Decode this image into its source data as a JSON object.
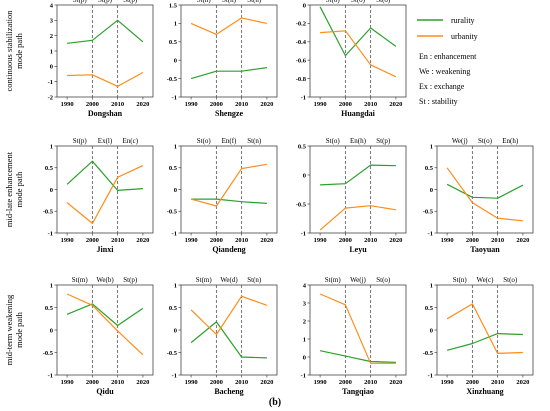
{
  "caption": "(b)",
  "legend": {
    "rurality": "rurality",
    "urbanity": "urbanity",
    "notes": [
      "En  : enhancement",
      "We  : weakening",
      "Ex  : exchange",
      "St   : stability"
    ]
  },
  "colors": {
    "rurality": "#2ca02c",
    "urbanity": "#ff8c1a"
  },
  "row_titles": [
    [
      "continuous stabilization",
      "mode path"
    ],
    [
      "mid-late enhancement",
      "mode path"
    ],
    [
      "mid-term weakening",
      "mode path"
    ]
  ],
  "chart_data": [
    {
      "type": "line",
      "name": "Dongshan",
      "row": 0,
      "col": 0,
      "x": [
        1990,
        2000,
        2010,
        2020
      ],
      "ylim": [
        -2,
        4
      ],
      "yticks": [
        -2,
        -1,
        0,
        1,
        2,
        3,
        4
      ],
      "phases": [
        "St(p)",
        "St(p)",
        "St(p)"
      ],
      "series": [
        {
          "name": "rurality",
          "values": [
            1.5,
            1.7,
            3.0,
            1.6
          ]
        },
        {
          "name": "urbanity",
          "values": [
            -0.6,
            -0.55,
            -1.3,
            -0.4
          ]
        }
      ]
    },
    {
      "type": "line",
      "name": "Shengze",
      "row": 0,
      "col": 1,
      "x": [
        1990,
        2000,
        2010,
        2020
      ],
      "ylim": [
        -1,
        1.5
      ],
      "yticks": [
        -1,
        -0.5,
        0,
        0.5,
        1,
        1.5
      ],
      "phases": [
        "St(n)",
        "St(n)",
        "St(n)"
      ],
      "series": [
        {
          "name": "rurality",
          "values": [
            -0.5,
            -0.3,
            -0.3,
            -0.2
          ]
        },
        {
          "name": "urbanity",
          "values": [
            1.0,
            0.7,
            1.15,
            1.0
          ]
        }
      ]
    },
    {
      "type": "line",
      "name": "Huangdai",
      "row": 0,
      "col": 2,
      "x": [
        1990,
        2000,
        2010,
        2020
      ],
      "ylim": [
        -1,
        0
      ],
      "yticks": [
        -1,
        -0.8,
        -0.6,
        -0.4,
        -0.2,
        0
      ],
      "phases": [
        "St(o)",
        "St(o)",
        "St(o)"
      ],
      "series": [
        {
          "name": "rurality",
          "values": [
            -0.02,
            -0.55,
            -0.25,
            -0.45
          ]
        },
        {
          "name": "urbanity",
          "values": [
            -0.3,
            -0.28,
            -0.65,
            -0.78
          ]
        }
      ]
    },
    {
      "type": "line",
      "name": "Jinxi",
      "row": 1,
      "col": 0,
      "x": [
        1990,
        2000,
        2010,
        2020
      ],
      "ylim": [
        -1,
        1
      ],
      "yticks": [
        -1,
        -0.5,
        0,
        0.5,
        1
      ],
      "phases": [
        "St(p)",
        "Ex(l)",
        "En(c)"
      ],
      "series": [
        {
          "name": "rurality",
          "values": [
            0.12,
            0.65,
            -0.02,
            0.02
          ]
        },
        {
          "name": "urbanity",
          "values": [
            -0.3,
            -0.78,
            0.28,
            0.55
          ]
        }
      ]
    },
    {
      "type": "line",
      "name": "Qiandeng",
      "row": 1,
      "col": 1,
      "x": [
        1990,
        2000,
        2010,
        2020
      ],
      "ylim": [
        -1,
        1
      ],
      "yticks": [
        -1,
        -0.5,
        0,
        0.5,
        1
      ],
      "phases": [
        "St(o)",
        "En(f)",
        "St(n)"
      ],
      "series": [
        {
          "name": "rurality",
          "values": [
            -0.22,
            -0.22,
            -0.28,
            -0.32
          ]
        },
        {
          "name": "urbanity",
          "values": [
            -0.22,
            -0.38,
            0.48,
            0.58
          ]
        }
      ]
    },
    {
      "type": "line",
      "name": "Leyu",
      "row": 1,
      "col": 2,
      "x": [
        1990,
        2000,
        2010,
        2020
      ],
      "ylim": [
        -1,
        0.5
      ],
      "yticks": [
        -1,
        -0.5,
        0,
        0.5
      ],
      "phases": [
        "St(o)",
        "En(h)",
        "St(p)"
      ],
      "series": [
        {
          "name": "rurality",
          "values": [
            -0.17,
            -0.15,
            0.17,
            0.16
          ]
        },
        {
          "name": "urbanity",
          "values": [
            -0.95,
            -0.57,
            -0.53,
            -0.6
          ]
        }
      ]
    },
    {
      "type": "line",
      "name": "Taoyuan",
      "row": 1,
      "col": 3,
      "x": [
        1990,
        2000,
        2010,
        2020
      ],
      "ylim": [
        -1,
        1
      ],
      "yticks": [
        -1,
        -0.5,
        0,
        0.5,
        1
      ],
      "phases": [
        "We(j)",
        "St(o)",
        "En(h)"
      ],
      "series": [
        {
          "name": "rurality",
          "values": [
            0.12,
            -0.18,
            -0.2,
            0.1
          ]
        },
        {
          "name": "urbanity",
          "values": [
            0.5,
            -0.3,
            -0.66,
            -0.72
          ]
        }
      ]
    },
    {
      "type": "line",
      "name": "Qidu",
      "row": 2,
      "col": 0,
      "x": [
        1990,
        2000,
        2010,
        2020
      ],
      "ylim": [
        -1,
        1
      ],
      "yticks": [
        -1,
        -0.5,
        0,
        0.5,
        1
      ],
      "phases": [
        "St(m)",
        "We(b)",
        "St(p)"
      ],
      "series": [
        {
          "name": "rurality",
          "values": [
            0.35,
            0.58,
            0.1,
            0.48
          ]
        },
        {
          "name": "urbanity",
          "values": [
            0.8,
            0.55,
            -0.02,
            -0.55
          ]
        }
      ]
    },
    {
      "type": "line",
      "name": "Bacheng",
      "row": 2,
      "col": 1,
      "x": [
        1990,
        2000,
        2010,
        2020
      ],
      "ylim": [
        -1,
        1
      ],
      "yticks": [
        -1,
        -0.5,
        0,
        0.5,
        1
      ],
      "phases": [
        "St(m)",
        "We(d)",
        "St(n)"
      ],
      "series": [
        {
          "name": "rurality",
          "values": [
            -0.28,
            0.18,
            -0.6,
            -0.62
          ]
        },
        {
          "name": "urbanity",
          "values": [
            0.45,
            -0.1,
            0.75,
            0.55
          ]
        }
      ]
    },
    {
      "type": "line",
      "name": "Tangqiao",
      "row": 2,
      "col": 2,
      "x": [
        1990,
        2000,
        2010,
        2020
      ],
      "ylim": [
        -1,
        4
      ],
      "yticks": [
        -1,
        0,
        1,
        2,
        3,
        4
      ],
      "phases": [
        "St(m)",
        "We(j)",
        "St(o)"
      ],
      "series": [
        {
          "name": "rurality",
          "values": [
            0.35,
            0.05,
            -0.25,
            -0.3
          ]
        },
        {
          "name": "urbanity",
          "values": [
            3.5,
            2.9,
            -0.35,
            -0.35
          ]
        }
      ]
    },
    {
      "type": "line",
      "name": "Xinzhuang",
      "row": 2,
      "col": 3,
      "x": [
        1990,
        2000,
        2010,
        2020
      ],
      "ylim": [
        -1,
        1
      ],
      "yticks": [
        -1,
        -0.5,
        0,
        0.5,
        1
      ],
      "phases": [
        "St(n)",
        "We(c)",
        "St(o)"
      ],
      "series": [
        {
          "name": "rurality",
          "values": [
            -0.45,
            -0.3,
            -0.08,
            -0.1
          ]
        },
        {
          "name": "urbanity",
          "values": [
            0.25,
            0.58,
            -0.52,
            -0.5
          ]
        }
      ]
    }
  ]
}
